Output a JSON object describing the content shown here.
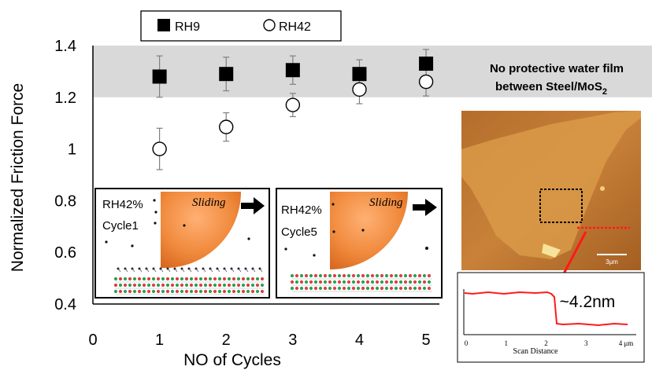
{
  "chart_data": {
    "type": "scatter",
    "xlabel": "NO of Cycles",
    "ylabel": "Normalized Friction Force",
    "xlim": [
      0,
      5.2
    ],
    "ylim": [
      0.4,
      1.4
    ],
    "xticks": [
      "0",
      "1",
      "2",
      "3",
      "4",
      "5"
    ],
    "yticks": [
      "0.4",
      "0.6",
      "0.8",
      "1",
      "1.2",
      "1.4"
    ],
    "legend_position": "top",
    "series": [
      {
        "name": "RH9",
        "marker": "filled-square",
        "x": [
          1,
          2,
          3,
          4,
          5
        ],
        "y": [
          1.28,
          1.29,
          1.305,
          1.29,
          1.33
        ],
        "err": [
          0.08,
          0.065,
          0.055,
          0.055,
          0.055
        ]
      },
      {
        "name": "RH42",
        "marker": "open-circle",
        "x": [
          1,
          2,
          3,
          4,
          5
        ],
        "y": [
          1.0,
          1.085,
          1.17,
          1.23,
          1.26
        ],
        "err": [
          0.08,
          0.055,
          0.045,
          0.055,
          0.055
        ]
      }
    ],
    "shaded_band": {
      "y_from": 1.2,
      "y_to": 1.4,
      "color": "#d9d9d9"
    },
    "annotation": {
      "line1": "No protective water film",
      "line2_prefix": "between Steel/MoS",
      "line2_sub": "2"
    }
  },
  "insets": {
    "cycle1": {
      "rh": "RH42%",
      "cycle": "Cycle1",
      "action": "Sliding"
    },
    "cycle5": {
      "rh": "RH42%",
      "cycle": "Cycle5",
      "action": "Sliding"
    }
  },
  "afm": {
    "scale_label": "3μm",
    "height_label": "~4.2nm",
    "profile_xlabel": "Scan Distance",
    "profile_xticks": [
      "0",
      "1",
      "2",
      "3",
      "4 μm"
    ]
  },
  "colors": {
    "band": "#d9d9d9",
    "particle": "#f08a3c",
    "afm_bg": "#c9833c",
    "profile_line": "#ff1a1a"
  }
}
